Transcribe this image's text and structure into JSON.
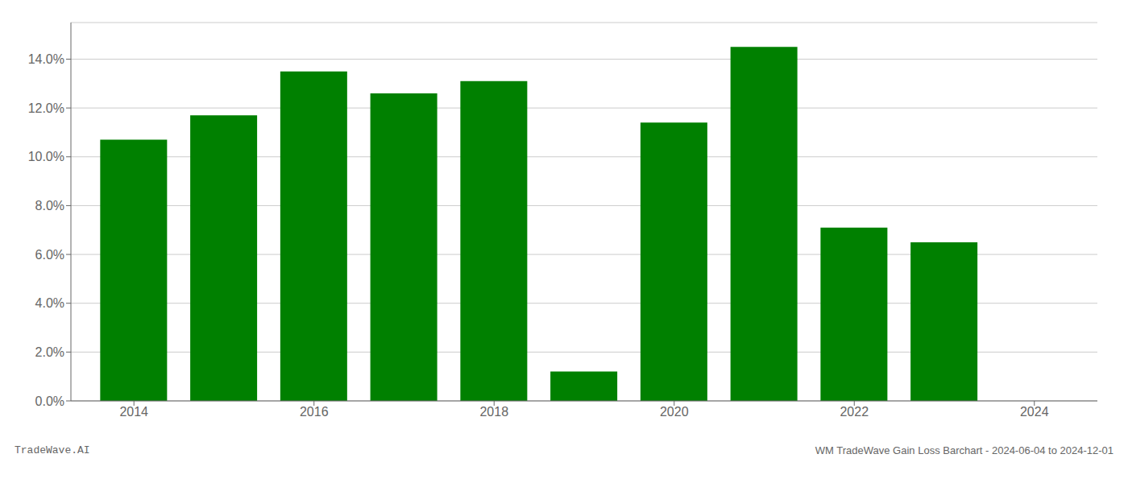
{
  "chart_data": {
    "type": "bar",
    "x": [
      2014,
      2015,
      2016,
      2017,
      2018,
      2019,
      2020,
      2021,
      2022,
      2023
    ],
    "values": [
      0.107,
      0.117,
      0.135,
      0.126,
      0.131,
      0.012,
      0.114,
      0.145,
      0.071,
      0.065
    ],
    "color": "#008000",
    "xlim": [
      2013.3,
      2024.7
    ],
    "xticks": [
      2014,
      2016,
      2018,
      2020,
      2022,
      2024
    ],
    "ylim": [
      0,
      0.155
    ],
    "yticks": [
      {
        "value": 0.0,
        "label": "0.0%"
      },
      {
        "value": 0.02,
        "label": "2.0%"
      },
      {
        "value": 0.04,
        "label": "4.0%"
      },
      {
        "value": 0.06,
        "label": "6.0%"
      },
      {
        "value": 0.08,
        "label": "8.0%"
      },
      {
        "value": 0.1,
        "label": "10.0%"
      },
      {
        "value": 0.12,
        "label": "12.0%"
      },
      {
        "value": 0.14,
        "label": "14.0%"
      }
    ],
    "grid": true,
    "annotations": [
      "TradeWave.AI",
      "WM TradeWave Gain Loss Barchart - 2024-06-04 to 2024-12-01"
    ]
  }
}
